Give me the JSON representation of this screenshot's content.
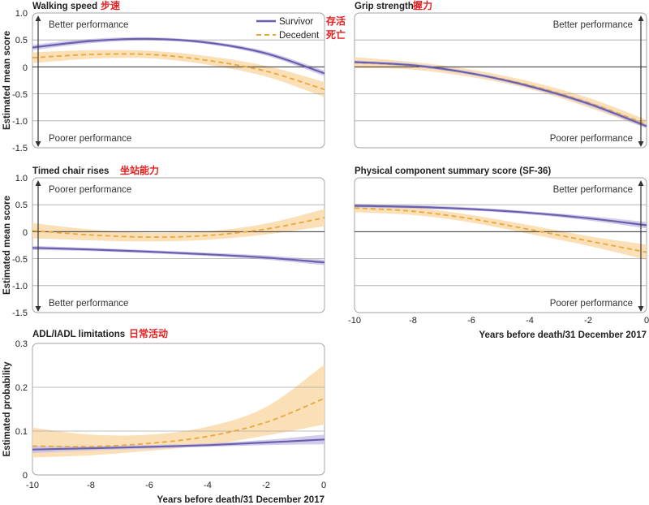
{
  "colors": {
    "survivor": "#6a5fae",
    "survivor_band": "#c9c3e6",
    "decedent": "#e8a93c",
    "decedent_band": "#fbdcae",
    "frame": "#a3a3a3",
    "grid": "#a8a8a8",
    "baseline": "#333333",
    "cjk_annotation": "#e41e1e"
  },
  "legend": {
    "survivor": "Survivor",
    "decedent": "Decedent",
    "survivor_cn": "存活",
    "decedent_cn": "死亡"
  },
  "chart_data": [
    {
      "type": "line",
      "title": "Walking speed",
      "title_cn": "步速",
      "ylabel": "Estimated mean score",
      "xlabel": "",
      "xlim": [
        -10,
        0
      ],
      "ylim": [
        -1.5,
        1.0
      ],
      "xticks": [],
      "yticks": [
        "1.0",
        "0.5",
        "0",
        "-0.5",
        "-1.0",
        "-1.5"
      ],
      "ytick_values": [
        1.0,
        0.5,
        0,
        -0.5,
        -1.0,
        -1.5
      ],
      "gridlines": [
        0.5,
        -0.5,
        -1.0
      ],
      "annotation_top": "Better performance",
      "annotation_bottom": "Poorer performance",
      "legend": "top-right",
      "x": [
        -10,
        -8,
        -6,
        -4,
        -2,
        0
      ],
      "series": [
        {
          "name": "Survivor",
          "values": [
            0.36,
            0.48,
            0.52,
            0.45,
            0.25,
            -0.12
          ],
          "lower": [
            0.31,
            0.44,
            0.49,
            0.42,
            0.21,
            -0.17
          ],
          "upper": [
            0.41,
            0.52,
            0.55,
            0.48,
            0.29,
            -0.07
          ]
        },
        {
          "name": "Decedent",
          "values": [
            0.17,
            0.23,
            0.23,
            0.12,
            -0.08,
            -0.42
          ],
          "lower": [
            0.07,
            0.15,
            0.16,
            0.04,
            -0.18,
            -0.56
          ],
          "upper": [
            0.27,
            0.31,
            0.3,
            0.2,
            0.02,
            -0.28
          ]
        }
      ]
    },
    {
      "type": "line",
      "title": "Grip strength",
      "title_cn": "握力",
      "ylabel": "",
      "xlabel": "",
      "xlim": [
        -10,
        0
      ],
      "ylim": [
        -1.5,
        1.0
      ],
      "xticks": [],
      "yticks": [],
      "gridlines": [
        0.5,
        -0.5,
        -1.0
      ],
      "annotation_top": "Better performance",
      "annotation_bottom": "Poorer performance",
      "x": [
        -10,
        -8,
        -6,
        -4,
        -2,
        0
      ],
      "series": [
        {
          "name": "Survivor",
          "values": [
            0.09,
            0.03,
            -0.12,
            -0.36,
            -0.68,
            -1.1
          ],
          "lower": [
            0.06,
            0.0,
            -0.15,
            -0.39,
            -0.72,
            -1.14
          ],
          "upper": [
            0.12,
            0.06,
            -0.09,
            -0.33,
            -0.64,
            -1.06
          ]
        },
        {
          "name": "Decedent",
          "values": [
            0.08,
            0.02,
            -0.12,
            -0.34,
            -0.66,
            -1.06
          ],
          "lower": [
            -0.02,
            -0.05,
            -0.19,
            -0.41,
            -0.75,
            -1.14
          ],
          "upper": [
            0.18,
            0.09,
            -0.05,
            -0.27,
            -0.57,
            -0.98
          ]
        }
      ]
    },
    {
      "type": "line",
      "title": "Timed chair rises",
      "title_cn": "坐站能力",
      "ylabel": "Estimated mean score",
      "xlabel": "",
      "xlim": [
        -10,
        0
      ],
      "ylim": [
        -1.5,
        1.0
      ],
      "xticks": [],
      "yticks": [
        "1.0",
        "0.5",
        "0",
        "-0.5",
        "-1.0",
        "-1.5"
      ],
      "ytick_values": [
        1.0,
        0.5,
        0,
        -0.5,
        -1.0,
        -1.5
      ],
      "gridlines": [
        0.5,
        -0.5,
        -1.0
      ],
      "annotation_top": "Poorer performance",
      "annotation_bottom": "Better performance",
      "x": [
        -10,
        -8,
        -6,
        -4,
        -2,
        0
      ],
      "series": [
        {
          "name": "Survivor",
          "values": [
            -0.3,
            -0.33,
            -0.37,
            -0.42,
            -0.48,
            -0.57
          ],
          "lower": [
            -0.34,
            -0.36,
            -0.4,
            -0.45,
            -0.52,
            -0.62
          ],
          "upper": [
            -0.26,
            -0.3,
            -0.34,
            -0.39,
            -0.44,
            -0.52
          ]
        },
        {
          "name": "Decedent",
          "values": [
            0.02,
            -0.06,
            -0.1,
            -0.07,
            0.05,
            0.26
          ],
          "lower": [
            -0.12,
            -0.16,
            -0.18,
            -0.15,
            -0.05,
            0.1
          ],
          "upper": [
            0.16,
            0.04,
            -0.02,
            0.01,
            0.15,
            0.42
          ]
        }
      ]
    },
    {
      "type": "line",
      "title": "Physical component summary score (SF-36)",
      "title_cn": "",
      "ylabel": "",
      "xlabel": "Years before death/31 December 2017",
      "xlim": [
        -10,
        0
      ],
      "ylim": [
        -1.5,
        1.0
      ],
      "xticks": [
        "-10",
        "-8",
        "-6",
        "-4",
        "-2",
        "0"
      ],
      "xtick_values": [
        -10,
        -8,
        -6,
        -4,
        -2,
        0
      ],
      "yticks": [],
      "gridlines": [
        0.5,
        -0.5,
        -1.0
      ],
      "annotation_top": "Better performance",
      "annotation_bottom": "Poorer performance",
      "x": [
        -10,
        -8,
        -6,
        -4,
        -2,
        0
      ],
      "series": [
        {
          "name": "Survivor",
          "values": [
            0.48,
            0.46,
            0.42,
            0.35,
            0.25,
            0.12
          ],
          "lower": [
            0.44,
            0.43,
            0.39,
            0.32,
            0.21,
            0.06
          ],
          "upper": [
            0.52,
            0.49,
            0.45,
            0.38,
            0.29,
            0.18
          ]
        },
        {
          "name": "Decedent",
          "values": [
            0.44,
            0.38,
            0.24,
            0.04,
            -0.17,
            -0.38
          ],
          "lower": [
            0.36,
            0.31,
            0.17,
            -0.04,
            -0.26,
            -0.52
          ],
          "upper": [
            0.52,
            0.45,
            0.31,
            0.12,
            -0.08,
            -0.24
          ]
        }
      ]
    },
    {
      "type": "line",
      "title": "ADL/IADL limitations",
      "title_cn": "日常活动",
      "ylabel": "Estimated probability",
      "xlabel": "Years before death/31 December 2017",
      "xlim": [
        -10,
        0
      ],
      "ylim": [
        0,
        0.3
      ],
      "xticks": [
        "-10",
        "-8",
        "-6",
        "-4",
        "-2",
        "0"
      ],
      "xtick_values": [
        -10,
        -8,
        -6,
        -4,
        -2,
        0
      ],
      "yticks": [
        "0.3",
        "0.2",
        "0.1",
        "0"
      ],
      "ytick_values": [
        0.3,
        0.2,
        0.1,
        0
      ],
      "gridlines": [
        0.1,
        0.2
      ],
      "annotation_top": "",
      "annotation_bottom": "",
      "x": [
        -10,
        -8,
        -6,
        -4,
        -2,
        0
      ],
      "series": [
        {
          "name": "Survivor",
          "values": [
            0.058,
            0.061,
            0.064,
            0.068,
            0.074,
            0.081
          ],
          "lower": [
            0.05,
            0.056,
            0.06,
            0.064,
            0.068,
            0.07
          ],
          "upper": [
            0.066,
            0.066,
            0.068,
            0.072,
            0.08,
            0.092
          ]
        },
        {
          "name": "Decedent",
          "values": [
            0.066,
            0.065,
            0.072,
            0.088,
            0.12,
            0.175
          ],
          "lower": [
            0.04,
            0.045,
            0.055,
            0.068,
            0.09,
            0.115
          ],
          "upper": [
            0.108,
            0.092,
            0.092,
            0.11,
            0.155,
            0.252
          ]
        }
      ]
    }
  ]
}
